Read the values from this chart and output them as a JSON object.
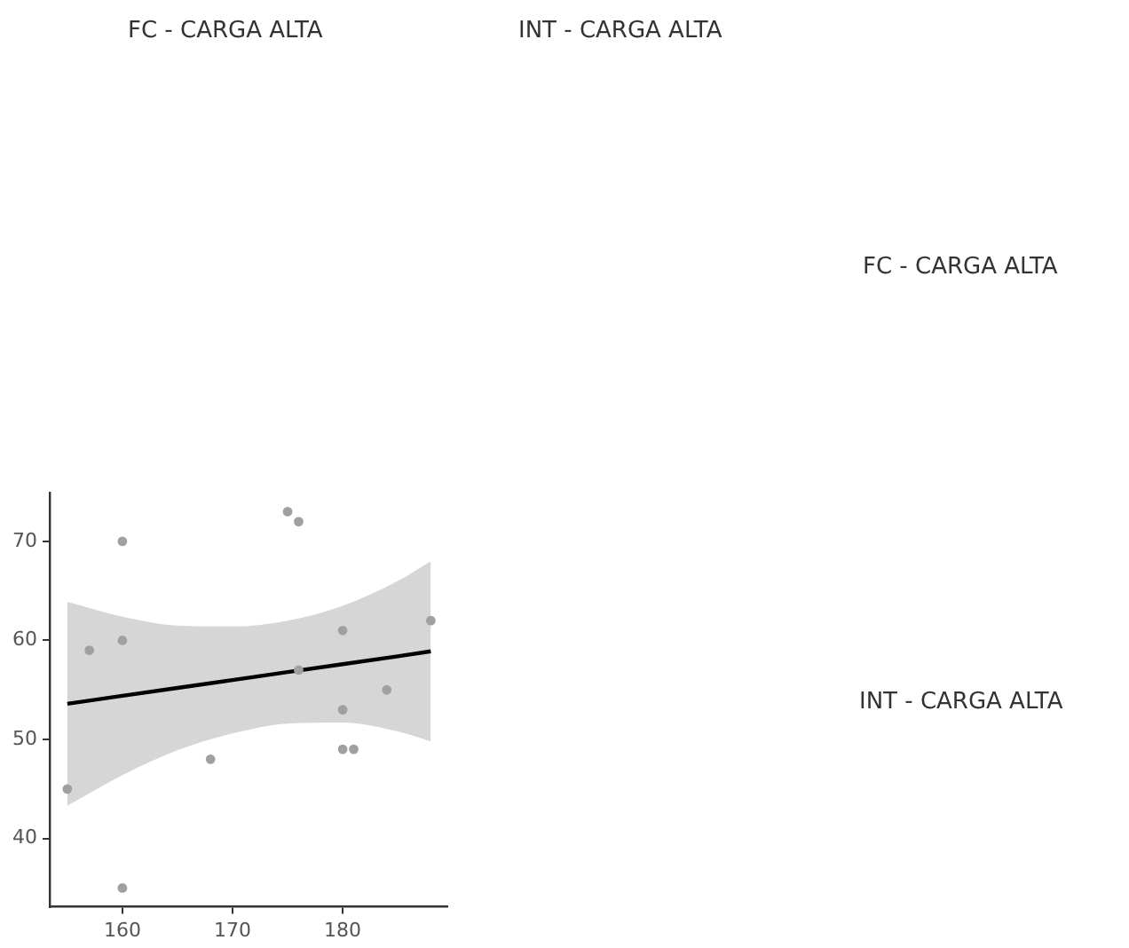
{
  "chart_data": {
    "type": "scatter",
    "annotations": [
      "FC - CARGA ALTA",
      "INT - CARGA ALTA",
      "FC - CARGA ALTA",
      "INT - CARGA ALTA"
    ],
    "series": [
      {
        "type": "scatter",
        "color": "#a0a0a0",
        "x": [
          155,
          157,
          160,
          160,
          160,
          168,
          175,
          176,
          176,
          180,
          180,
          180,
          181,
          184,
          188
        ],
        "values": [
          45,
          59,
          70,
          60,
          35,
          48,
          73,
          72,
          57,
          61,
          53,
          49,
          49,
          55,
          62
        ]
      },
      {
        "type": "line",
        "color": "#000000",
        "marker": "none",
        "x": [
          155,
          160,
          165,
          170,
          175,
          180,
          185,
          188
        ],
        "values": [
          53.6,
          54.4,
          55.2,
          56.0,
          56.8,
          57.6,
          58.4,
          58.9
        ],
        "lower": [
          43.3,
          46.4,
          48.9,
          50.6,
          51.6,
          51.7,
          50.8,
          49.8
        ],
        "upper": [
          63.9,
          62.4,
          61.5,
          61.4,
          62.0,
          63.5,
          66.0,
          68.0
        ]
      }
    ],
    "xlim": [
      153.4,
      189.5
    ],
    "xticks": [
      160,
      170,
      180
    ],
    "ylim": [
      33.1,
      74.9
    ],
    "yticks": [
      40,
      50,
      60,
      70
    ],
    "grid": false,
    "legend": false
  }
}
